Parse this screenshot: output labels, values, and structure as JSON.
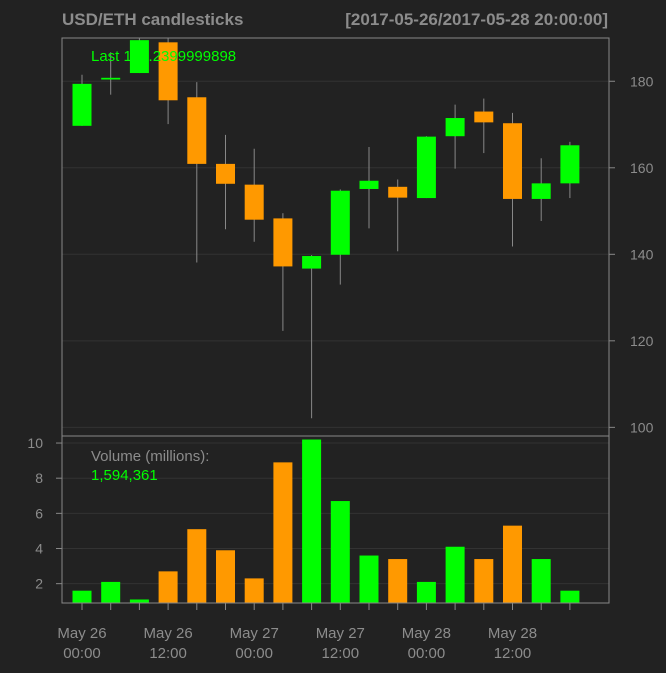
{
  "title": "USD/ETH candlesticks",
  "date_range": "[2017-05-26/2017-05-28 20:00:00]",
  "last_label": "Last 165.2399999898",
  "volume_title": "Volume (millions):",
  "volume_value": "1,594,361",
  "colors": {
    "background": "#222222",
    "up": "#00ff00",
    "down": "#ff9900",
    "axis_text": "#8c8c8c",
    "grid": "#333333",
    "box": "#888888",
    "wick": "#888888"
  },
  "chart_data": [
    {
      "type": "candlestick",
      "title": "USD/ETH candlesticks",
      "ylim": [
        98,
        190
      ],
      "yticks": [
        100,
        120,
        140,
        160,
        180
      ],
      "grid": true,
      "candles": [
        {
          "open": 169.7,
          "high": 181.5,
          "low": 169.7,
          "close": 179.4
        },
        {
          "open": 180.4,
          "high": 186.7,
          "low": 176.9,
          "close": 180.8
        },
        {
          "open": 181.9,
          "high": 190.0,
          "low": 181.9,
          "close": 189.5
        },
        {
          "open": 189.0,
          "high": 190.0,
          "low": 170.1,
          "close": 175.6
        },
        {
          "open": 176.3,
          "high": 179.8,
          "low": 138.1,
          "close": 160.9
        },
        {
          "open": 160.9,
          "high": 167.6,
          "low": 145.8,
          "close": 156.3
        },
        {
          "open": 156.1,
          "high": 164.4,
          "low": 142.9,
          "close": 148.0
        },
        {
          "open": 148.3,
          "high": 149.5,
          "low": 122.3,
          "close": 137.2
        },
        {
          "open": 136.7,
          "high": 139.8,
          "low": 102.1,
          "close": 139.6
        },
        {
          "open": 139.9,
          "high": 155.0,
          "low": 133.0,
          "close": 154.7
        },
        {
          "open": 155.1,
          "high": 164.8,
          "low": 146.0,
          "close": 157.0
        },
        {
          "open": 155.6,
          "high": 157.3,
          "low": 140.7,
          "close": 153.1
        },
        {
          "open": 153.0,
          "high": 167.3,
          "low": 153.0,
          "close": 167.2
        },
        {
          "open": 167.3,
          "high": 174.6,
          "low": 159.8,
          "close": 171.5
        },
        {
          "open": 173.0,
          "high": 176.0,
          "low": 163.4,
          "close": 170.5
        },
        {
          "open": 170.3,
          "high": 172.7,
          "low": 141.8,
          "close": 152.8
        },
        {
          "open": 152.8,
          "high": 162.2,
          "low": 147.7,
          "close": 156.4
        },
        {
          "open": 156.4,
          "high": 166.0,
          "low": 153.0,
          "close": 165.2
        }
      ]
    },
    {
      "type": "bar",
      "title": "Volume (millions):",
      "ylim": [
        0.9,
        10.4
      ],
      "yticks": [
        2,
        4,
        6,
        8,
        10
      ],
      "values": [
        1.6,
        2.1,
        1.1,
        2.7,
        5.1,
        3.9,
        2.3,
        8.9,
        10.2,
        6.7,
        3.6,
        3.4,
        2.1,
        4.1,
        3.4,
        5.3,
        3.4,
        1.6
      ],
      "directions": [
        "up",
        "up",
        "up",
        "down",
        "down",
        "down",
        "down",
        "down",
        "up",
        "up",
        "up",
        "down",
        "up",
        "up",
        "down",
        "down",
        "up",
        "up"
      ]
    }
  ],
  "x_ticks": [
    {
      "line1": "May 26",
      "line2": "00:00",
      "index": 0
    },
    {
      "line1": "May 26",
      "line2": "12:00",
      "index": 3
    },
    {
      "line1": "May 27",
      "line2": "00:00",
      "index": 6
    },
    {
      "line1": "May 27",
      "line2": "12:00",
      "index": 9
    },
    {
      "line1": "May 28",
      "line2": "00:00",
      "index": 12
    },
    {
      "line1": "May 28",
      "line2": "12:00",
      "index": 15
    }
  ]
}
